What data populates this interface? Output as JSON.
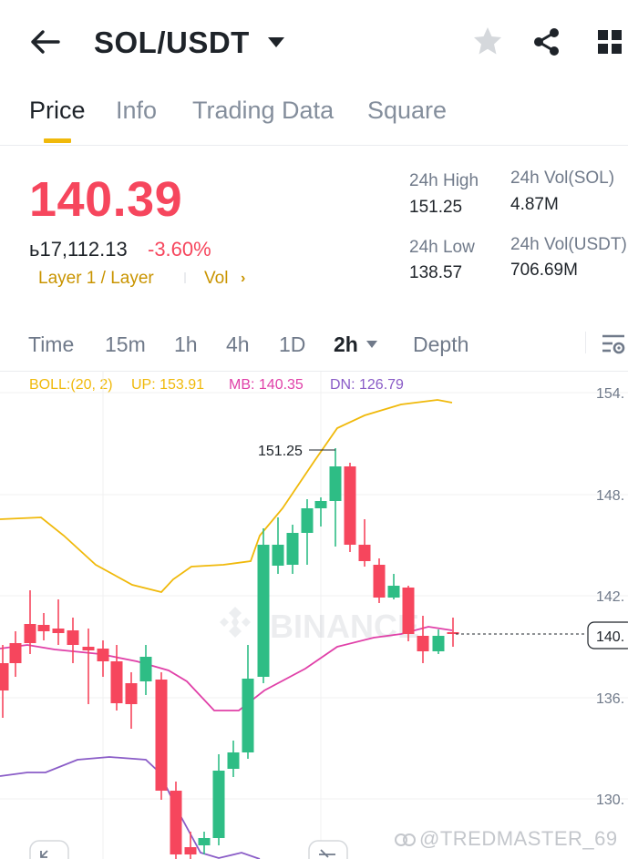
{
  "header": {
    "pair": "SOL/USDT",
    "icons": [
      "back-arrow-icon",
      "caret-down-icon",
      "star-icon",
      "share-icon",
      "grid-icon"
    ]
  },
  "tabs": [
    {
      "label": "Price",
      "active": true
    },
    {
      "label": "Info",
      "active": false
    },
    {
      "label": "Trading Data",
      "active": false
    },
    {
      "label": "Square",
      "active": false
    }
  ],
  "price": {
    "last": "140.39",
    "fiat": "ь17,112.13",
    "change": "-3.60%",
    "tag": "Layer 1 / Layer",
    "vol_link": "Vol",
    "vol_chevron": "›"
  },
  "stats": {
    "high_label": "24h High",
    "high_value": "151.25",
    "low_label": "24h Low",
    "low_value": "138.57",
    "vol_sol_label": "24h Vol(SOL)",
    "vol_sol_value": "4.87M",
    "vol_usdt_label": "24h Vol(USDT)",
    "vol_usdt_value": "706.69M"
  },
  "intervals": [
    {
      "label": "Time",
      "active": false
    },
    {
      "label": "15m",
      "active": false
    },
    {
      "label": "1h",
      "active": false
    },
    {
      "label": "4h",
      "active": false
    },
    {
      "label": "1D",
      "active": false
    },
    {
      "label": "2h",
      "active": true
    },
    {
      "label": "Depth",
      "active": false
    }
  ],
  "boll": {
    "name": "BOLL:(20, 2)",
    "up": "UP: 153.91",
    "mb": "MB: 140.35",
    "dn": "DN: 126.79"
  },
  "chart": {
    "price_labels": [
      "154.",
      "148.",
      "142.",
      "136.",
      "130."
    ],
    "high_marker": "151.25",
    "last_price_tag": "140.",
    "watermark": "BINANCE",
    "colors": {
      "up": "#2ebd85",
      "down": "#f6465d",
      "boll_up": "#f0b90b",
      "boll_mb": "#e040a8",
      "boll_dn": "#8a5cc7",
      "accent": "#f0b90b",
      "price_down": "#f6465d"
    }
  },
  "footer": {
    "user_watermark": "@TREDMASTER_69"
  }
}
